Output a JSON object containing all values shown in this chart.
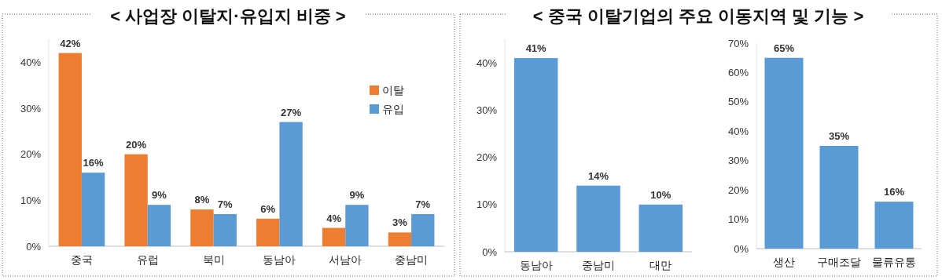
{
  "chart_data": [
    {
      "type": "bar",
      "title": "< 사업장 이탈지·유입지 비중 >",
      "categories": [
        "중국",
        "유럽",
        "북미",
        "동남아",
        "서남아",
        "중남미"
      ],
      "ylim": [
        0,
        45
      ],
      "yticks": [
        {
          "value": 0,
          "label": "0%"
        },
        {
          "value": 10,
          "label": "10%"
        },
        {
          "value": 20,
          "label": "20%"
        },
        {
          "value": 30,
          "label": "30%"
        },
        {
          "value": 40,
          "label": "40%"
        }
      ],
      "grid": false,
      "legend": "right",
      "series": [
        {
          "name": "이탈",
          "color": "#ed7d31",
          "values": [
            42,
            20,
            8,
            6,
            4,
            3
          ],
          "value_labels": [
            "42%",
            "20%",
            "8%",
            "6%",
            "4%",
            "3%"
          ]
        },
        {
          "name": "유입",
          "color": "#5b9bd5",
          "values": [
            16,
            9,
            7,
            27,
            9,
            7
          ],
          "value_labels": [
            "16%",
            "9%",
            "7%",
            "27%",
            "9%",
            "7%"
          ]
        }
      ]
    },
    {
      "type": "bar",
      "title": "< 중국 이탈기업의 주요 이동지역 및 기능 >",
      "categories": [
        "동남아",
        "중남미",
        "대만"
      ],
      "ylim": [
        0,
        45
      ],
      "yticks": [
        {
          "value": 0,
          "label": "0%"
        },
        {
          "value": 10,
          "label": "10%"
        },
        {
          "value": 20,
          "label": "20%"
        },
        {
          "value": 30,
          "label": "30%"
        },
        {
          "value": 40,
          "label": "40%"
        }
      ],
      "grid": false,
      "legend": false,
      "series": [
        {
          "color": "#5b9bd5",
          "values": [
            41,
            14,
            10
          ],
          "value_labels": [
            "41%",
            "14%",
            "10%"
          ]
        }
      ]
    },
    {
      "type": "bar",
      "categories": [
        "생산",
        "구매조달",
        "물류유통"
      ],
      "ylim": [
        0,
        70
      ],
      "yticks": [
        {
          "value": 0,
          "label": "0%"
        },
        {
          "value": 10,
          "label": "10%"
        },
        {
          "value": 20,
          "label": "20%"
        },
        {
          "value": 30,
          "label": "30%"
        },
        {
          "value": 40,
          "label": "40%"
        },
        {
          "value": 50,
          "label": "50%"
        },
        {
          "value": 60,
          "label": "60%"
        },
        {
          "value": 70,
          "label": "70%"
        }
      ],
      "grid": false,
      "legend": false,
      "series": [
        {
          "color": "#5b9bd5",
          "values": [
            65,
            35,
            16
          ],
          "value_labels": [
            "65%",
            "35%",
            "16%"
          ]
        }
      ]
    }
  ]
}
